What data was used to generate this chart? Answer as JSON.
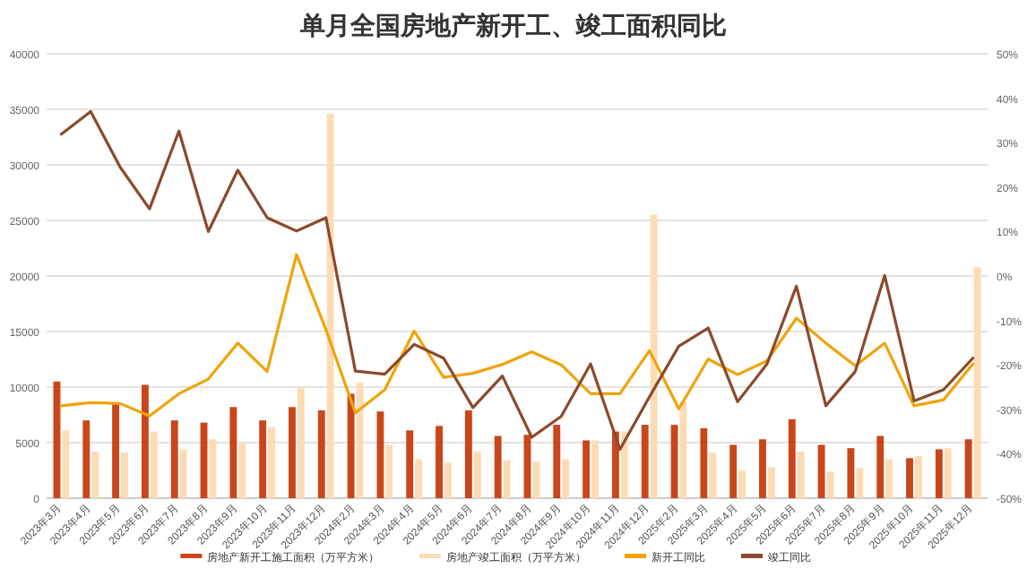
{
  "chart_data": {
    "type": "bar",
    "title": "单月全国房地产新开工、竣工面积同比",
    "categories": [
      "2023年3月",
      "2023年4月",
      "2023年5月",
      "2023年6月",
      "2023年7月",
      "2023年8月",
      "2023年9月",
      "2023年10月",
      "2023年11月",
      "2023年12月",
      "2024年2月",
      "2024年3月",
      "2024年4月",
      "2024年5月",
      "2024年6月",
      "2024年7月",
      "2024年8月",
      "2024年9月",
      "2024年10月",
      "2024年11月",
      "2024年12月",
      "2025年2月",
      "2025年3月",
      "2025年4月",
      "2025年5月",
      "2025年6月",
      "2025年7月",
      "2025年8月",
      "2025年9月",
      "2025年10月",
      "2025年11月",
      "2025年12月"
    ],
    "series": [
      {
        "name": "房地产新开工施工面积（万平方米）",
        "color": "#c9461b",
        "values": [
          10500,
          7000,
          8500,
          10200,
          7000,
          6800,
          8200,
          7000,
          8200,
          7900,
          9400,
          7800,
          6100,
          6500,
          7900,
          5600,
          5700,
          6600,
          5200,
          6000,
          6600,
          6600,
          6300,
          4800,
          5300,
          7100,
          4800,
          4500,
          5600,
          3600,
          4400,
          5300
        ]
      },
      {
        "name": "房地产竣工面积（万平方米）",
        "color": "#fddcb5",
        "values": [
          6100,
          4200,
          4100,
          6000,
          4400,
          5300,
          4900,
          6400,
          10000,
          34600,
          10400,
          4800,
          3500,
          3200,
          4200,
          3400,
          3300,
          3500,
          5200,
          6000,
          25500,
          8700,
          4100,
          2500,
          2800,
          4200,
          2400,
          2700,
          3500,
          3800,
          4500,
          20800
        ]
      },
      {
        "name": "新开工同比",
        "type": "line",
        "axis": "y2",
        "color": "#f0a30a",
        "values": [
          -29.2,
          -28.5,
          -28.7,
          -31.5,
          -26.5,
          -23.2,
          -15.1,
          -21.5,
          4.8,
          -12.1,
          -30.8,
          -25.6,
          -12.4,
          -22.8,
          -21.9,
          -19.9,
          -17.1,
          -20,
          -26.5,
          -26.5,
          -16.8,
          -29.9,
          -18.7,
          -22.2,
          -19.1,
          -9.5,
          -15.1,
          -20.2,
          -15.1,
          -29.2,
          -27.9,
          -19.8
        ]
      },
      {
        "name": "竣工同比",
        "type": "line",
        "axis": "y2",
        "color": "#8b4a2b",
        "values": [
          31.9,
          37,
          24.5,
          15.1,
          32.6,
          10,
          23.8,
          13.1,
          10.1,
          13.1,
          -21.4,
          -22.1,
          -15.4,
          -18.5,
          -29.6,
          -22.5,
          -36.3,
          -31.6,
          -19.8,
          -39,
          -27.2,
          -15.8,
          -11.7,
          -28.3,
          -19.8,
          -2.3,
          -29.2,
          -21.5,
          0.1,
          -28.1,
          -25.6,
          -18.5
        ]
      }
    ],
    "ylim": [
      0,
      40000
    ],
    "yticks": [
      0,
      5000,
      10000,
      15000,
      20000,
      25000,
      30000,
      35000,
      40000
    ],
    "y2lim": [
      -50,
      50
    ],
    "y2ticks": [
      {
        "value": -50,
        "label": "-50%"
      },
      {
        "value": -40,
        "label": "-40%"
      },
      {
        "value": -30,
        "label": "-30%"
      },
      {
        "value": -20,
        "label": "-20%"
      },
      {
        "value": -10,
        "label": "-10%"
      },
      {
        "value": 0,
        "label": "0%"
      },
      {
        "value": 10,
        "label": "10%"
      },
      {
        "value": 20,
        "label": "20%"
      },
      {
        "value": 30,
        "label": "30%"
      },
      {
        "value": 40,
        "label": "40%"
      },
      {
        "value": 50,
        "label": "50%"
      }
    ],
    "grid": "y",
    "legend": "bottom"
  }
}
